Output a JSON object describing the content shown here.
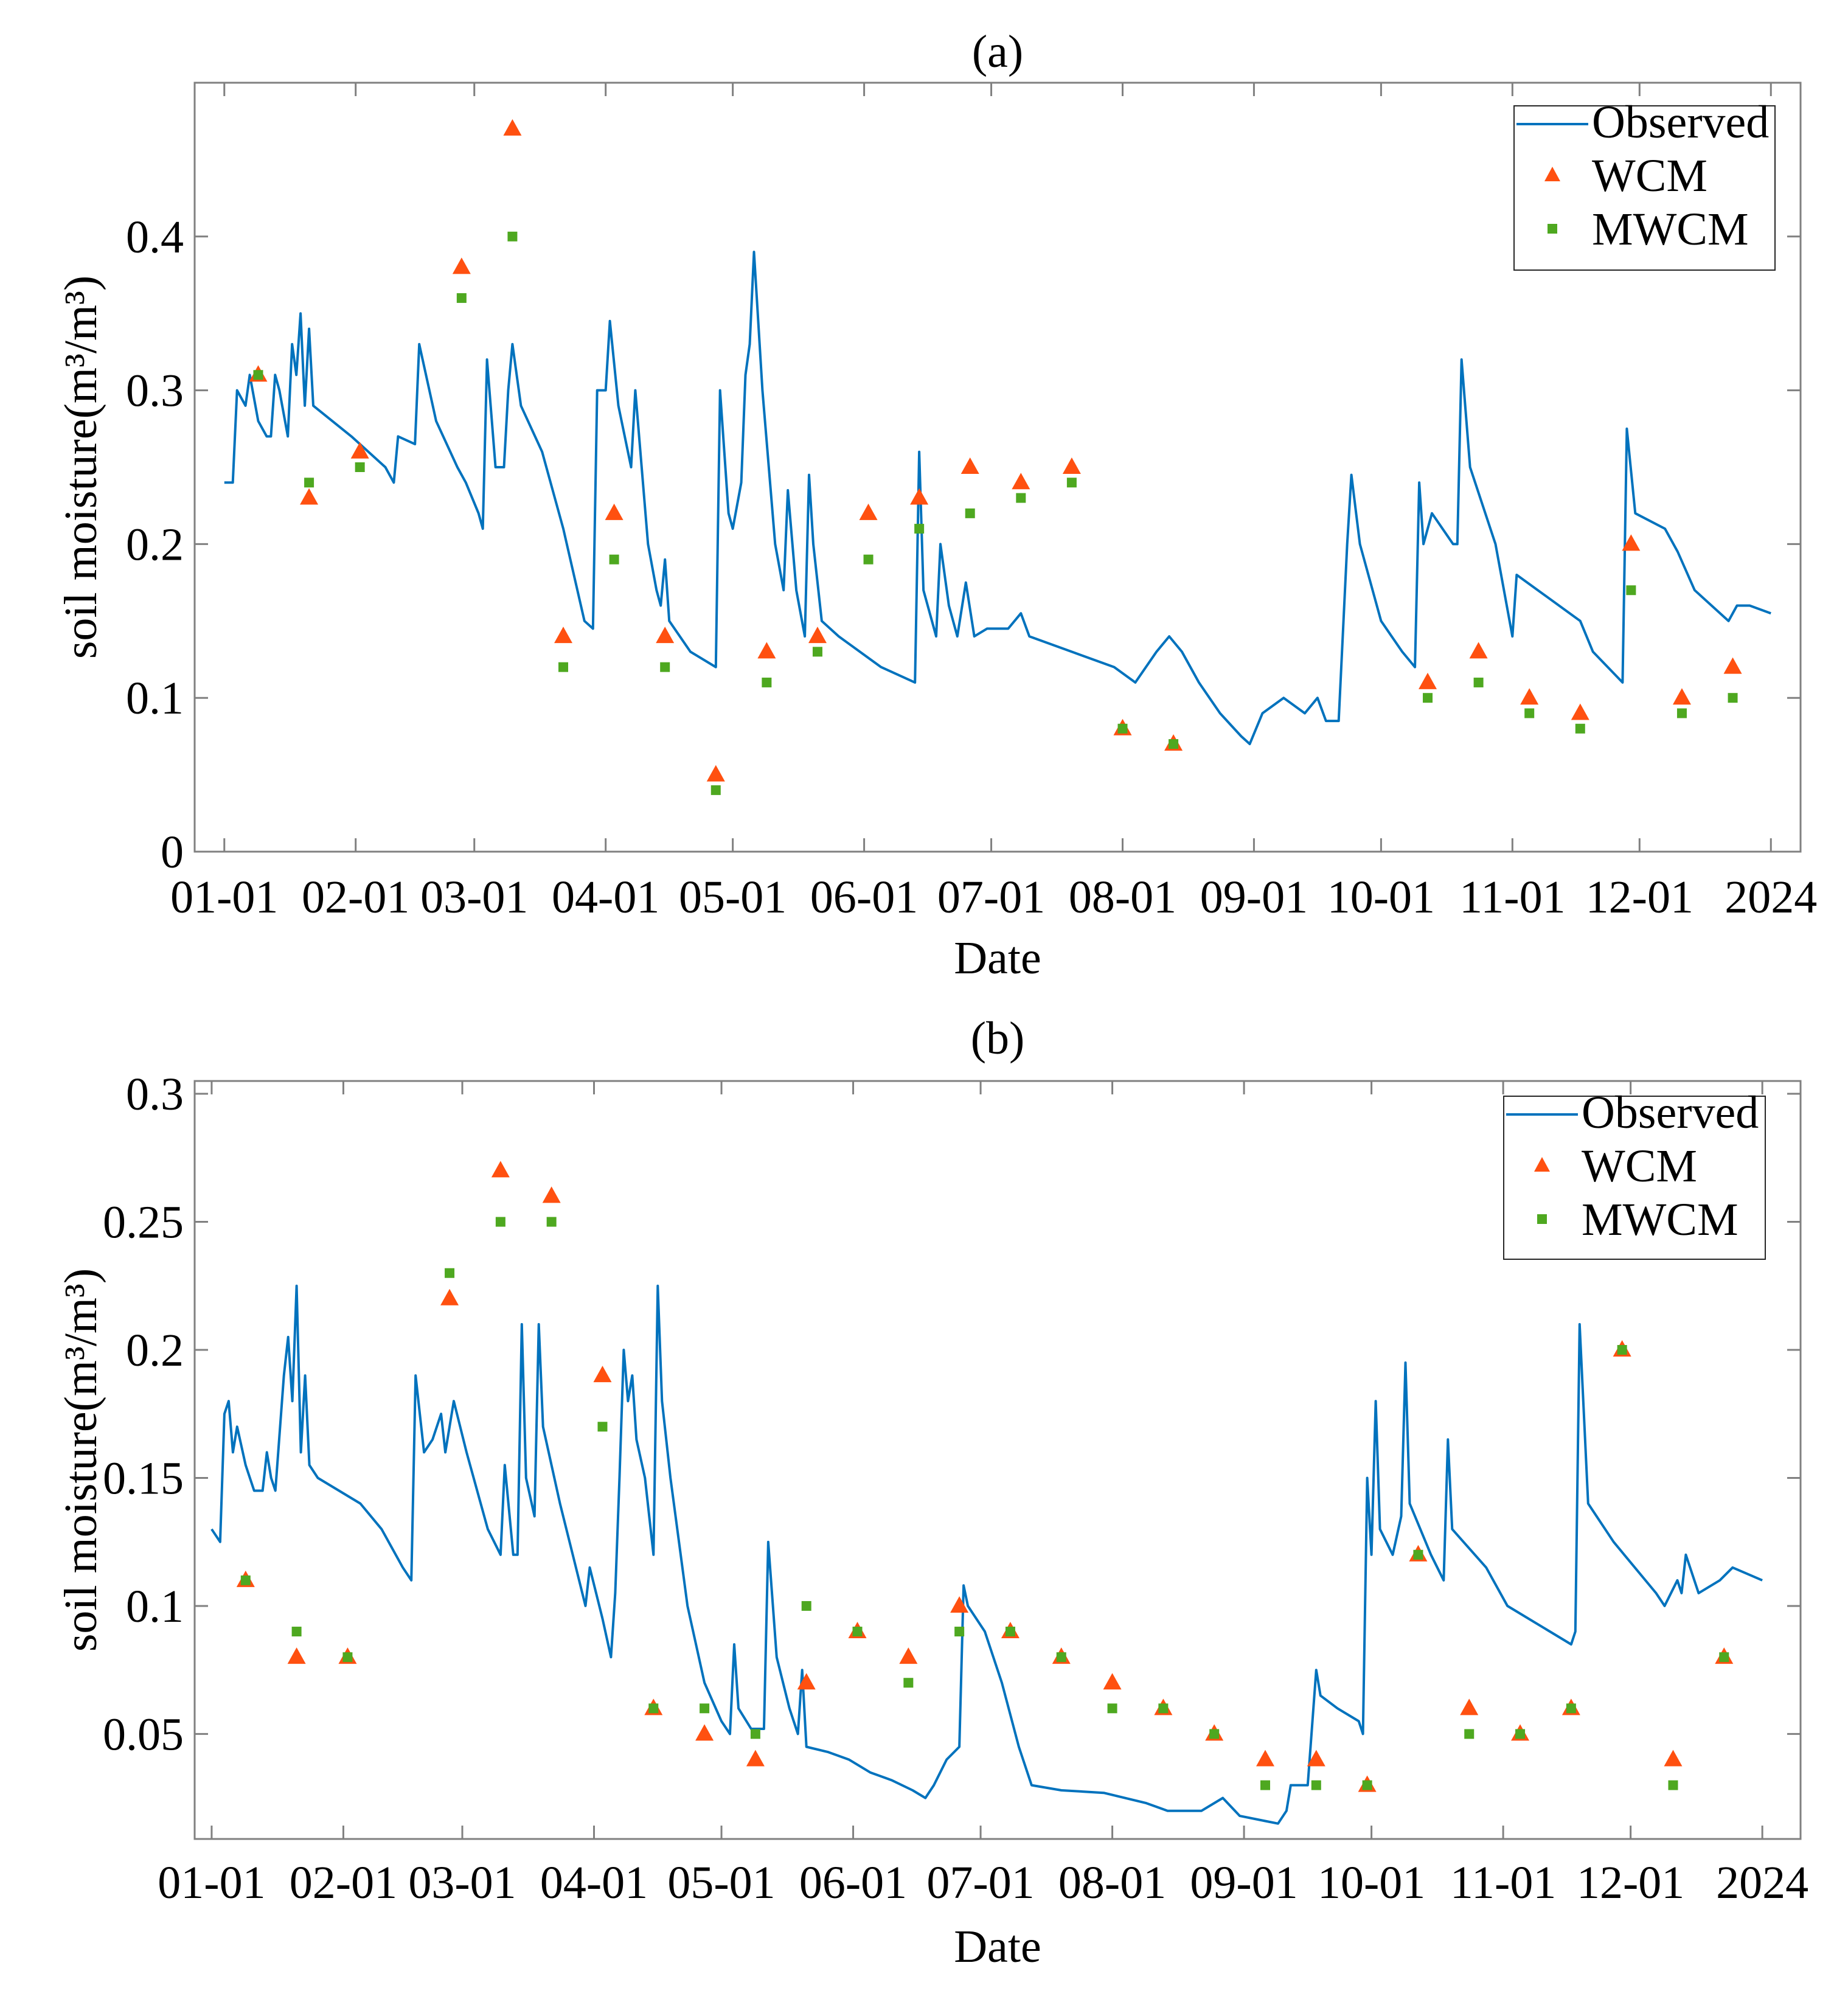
{
  "colors": {
    "observed": "#0072BD",
    "wcm": "#FF5010",
    "mwcm": "#4EA820",
    "axis": "#808080"
  },
  "chart_data": [
    {
      "type": "line",
      "title": "(a)",
      "xlabel": "Date",
      "ylabel": "soil moisture(m³/m³)",
      "x_unit": "day of year",
      "xlim": [
        -7,
        372
      ],
      "ylim": [
        0,
        0.5
      ],
      "xticks": [
        0,
        31,
        59,
        90,
        120,
        151,
        181,
        212,
        243,
        273,
        304,
        334,
        365
      ],
      "xtick_labels": [
        "01-01",
        "02-01",
        "03-01",
        "04-01",
        "05-01",
        "06-01",
        "07-01",
        "08-01",
        "09-01",
        "10-01",
        "11-01",
        "12-01",
        "2024"
      ],
      "yticks": [
        0,
        0.1,
        0.2,
        0.3,
        0.4
      ],
      "ytick_labels": [
        "0",
        "0.1",
        "0.2",
        "0.3",
        "0.4"
      ],
      "legend": {
        "position": "top-right",
        "entries": [
          "Observed",
          "WCM",
          "MWCM"
        ]
      },
      "series": [
        {
          "name": "Observed",
          "kind": "line",
          "x": [
            0,
            2,
            3,
            5,
            6,
            8,
            10,
            11,
            12,
            13,
            15,
            16,
            17,
            18,
            19,
            20,
            21,
            30,
            38,
            40,
            41,
            45,
            46,
            50,
            55,
            57,
            60,
            61,
            62,
            64,
            66,
            67,
            68,
            70,
            75,
            80,
            85,
            87,
            88,
            90,
            91,
            93,
            96,
            97,
            100,
            102,
            103,
            104,
            105,
            110,
            116,
            117,
            119,
            120,
            122,
            123,
            124,
            125,
            127,
            130,
            132,
            133,
            135,
            137,
            138,
            139,
            141,
            145,
            150,
            155,
            163,
            164,
            165,
            168,
            169,
            171,
            173,
            175,
            177,
            180,
            185,
            188,
            190,
            200,
            210,
            215,
            220,
            223,
            226,
            230,
            235,
            240,
            242,
            245,
            250,
            255,
            258,
            260,
            263,
            265,
            266,
            268,
            273,
            278,
            281,
            282,
            283,
            285,
            290,
            291,
            292,
            294,
            300,
            304,
            305,
            310,
            320,
            323,
            330,
            331,
            333,
            340,
            343,
            347,
            355,
            357,
            360,
            365
          ],
          "y": [
            0.24,
            0.24,
            0.3,
            0.29,
            0.31,
            0.28,
            0.27,
            0.27,
            0.31,
            0.3,
            0.27,
            0.33,
            0.31,
            0.35,
            0.29,
            0.34,
            0.29,
            0.27,
            0.25,
            0.24,
            0.27,
            0.265,
            0.33,
            0.28,
            0.25,
            0.24,
            0.22,
            0.21,
            0.32,
            0.25,
            0.25,
            0.3,
            0.33,
            0.29,
            0.26,
            0.21,
            0.15,
            0.145,
            0.3,
            0.3,
            0.345,
            0.29,
            0.25,
            0.3,
            0.2,
            0.17,
            0.16,
            0.19,
            0.15,
            0.13,
            0.12,
            0.3,
            0.22,
            0.21,
            0.24,
            0.31,
            0.33,
            0.39,
            0.3,
            0.2,
            0.17,
            0.235,
            0.17,
            0.14,
            0.245,
            0.2,
            0.15,
            0.14,
            0.13,
            0.12,
            0.11,
            0.26,
            0.17,
            0.14,
            0.2,
            0.16,
            0.14,
            0.175,
            0.14,
            0.145,
            0.145,
            0.155,
            0.14,
            0.13,
            0.12,
            0.11,
            0.13,
            0.14,
            0.13,
            0.11,
            0.09,
            0.075,
            0.07,
            0.09,
            0.1,
            0.09,
            0.1,
            0.085,
            0.085,
            0.2,
            0.245,
            0.2,
            0.15,
            0.13,
            0.12,
            0.24,
            0.2,
            0.22,
            0.2,
            0.2,
            0.32,
            0.25,
            0.2,
            0.14,
            0.18,
            0.17,
            0.15,
            0.13,
            0.11,
            0.275,
            0.22,
            0.21,
            0.195,
            0.17,
            0.15,
            0.16,
            0.16,
            0.155
          ]
        },
        {
          "name": "WCM",
          "kind": "triangle",
          "x": [
            8,
            20,
            32,
            56,
            68,
            80,
            92,
            104,
            116,
            128,
            140,
            152,
            164,
            176,
            188,
            200,
            212,
            224,
            284,
            296,
            308,
            320,
            332,
            344,
            356
          ],
          "y": [
            0.31,
            0.23,
            0.26,
            0.38,
            0.47,
            0.14,
            0.22,
            0.14,
            0.05,
            0.13,
            0.14,
            0.22,
            0.23,
            0.25,
            0.24,
            0.25,
            0.08,
            0.07,
            0.11,
            0.13,
            0.1,
            0.09,
            0.2,
            0.1,
            0.12
          ]
        },
        {
          "name": "MWCM",
          "kind": "square",
          "x": [
            8,
            20,
            32,
            56,
            68,
            80,
            92,
            104,
            116,
            128,
            140,
            152,
            164,
            176,
            188,
            200,
            212,
            224,
            284,
            296,
            308,
            320,
            332,
            344,
            356
          ],
          "y": [
            0.31,
            0.24,
            0.25,
            0.36,
            0.4,
            0.12,
            0.19,
            0.12,
            0.04,
            0.11,
            0.13,
            0.19,
            0.21,
            0.22,
            0.23,
            0.24,
            0.08,
            0.07,
            0.1,
            0.11,
            0.09,
            0.08,
            0.17,
            0.09,
            0.1
          ]
        }
      ]
    },
    {
      "type": "line",
      "title": "(b)",
      "xlabel": "Date",
      "ylabel": "soil moisture(m³/m³)",
      "x_unit": "day of year",
      "xlim": [
        -4,
        374
      ],
      "ylim": [
        0.009,
        0.305
      ],
      "xticks": [
        0,
        31,
        59,
        90,
        120,
        151,
        181,
        212,
        243,
        273,
        304,
        334,
        365
      ],
      "xtick_labels": [
        "01-01",
        "02-01",
        "03-01",
        "04-01",
        "05-01",
        "06-01",
        "07-01",
        "08-01",
        "09-01",
        "10-01",
        "11-01",
        "12-01",
        "2024"
      ],
      "yticks": [
        0.05,
        0.1,
        0.15,
        0.2,
        0.25,
        0.3
      ],
      "ytick_labels": [
        "0.05",
        "0.1",
        "0.15",
        "0.2",
        "0.25",
        "0.3"
      ],
      "legend": {
        "position": "top-right",
        "entries": [
          "Observed",
          "WCM",
          "MWCM"
        ]
      },
      "series": [
        {
          "name": "Observed",
          "kind": "line",
          "x": [
            0,
            2,
            3,
            4,
            5,
            6,
            8,
            10,
            12,
            13,
            14,
            15,
            17,
            18,
            19,
            20,
            21,
            22,
            23,
            25,
            35,
            40,
            45,
            47,
            48,
            50,
            52,
            54,
            55,
            57,
            60,
            65,
            68,
            69,
            71,
            72,
            73,
            74,
            76,
            77,
            78,
            82,
            85,
            88,
            89,
            92,
            94,
            95,
            96,
            97,
            98,
            99,
            100,
            102,
            104,
            105,
            106,
            108,
            112,
            116,
            120,
            122,
            123,
            124,
            127,
            130,
            131,
            133,
            136,
            138,
            139,
            140,
            145,
            150,
            155,
            160,
            165,
            168,
            170,
            173,
            176,
            177,
            178,
            182,
            186,
            190,
            193,
            200,
            210,
            220,
            225,
            233,
            238,
            242,
            248,
            251,
            253,
            254,
            258,
            260,
            261,
            265,
            270,
            271,
            272,
            273,
            274,
            275,
            278,
            280,
            281,
            282,
            287,
            290,
            291,
            292,
            300,
            305,
            315,
            320,
            321,
            322,
            324,
            330,
            340,
            342,
            345,
            346,
            347,
            350,
            355,
            358,
            365
          ],
          "y": [
            0.13,
            0.125,
            0.175,
            0.18,
            0.16,
            0.17,
            0.155,
            0.145,
            0.145,
            0.16,
            0.15,
            0.145,
            0.19,
            0.205,
            0.18,
            0.225,
            0.16,
            0.19,
            0.155,
            0.15,
            0.14,
            0.13,
            0.115,
            0.11,
            0.19,
            0.16,
            0.165,
            0.175,
            0.16,
            0.18,
            0.16,
            0.13,
            0.12,
            0.155,
            0.12,
            0.12,
            0.21,
            0.15,
            0.135,
            0.21,
            0.17,
            0.14,
            0.12,
            0.1,
            0.115,
            0.095,
            0.08,
            0.105,
            0.15,
            0.2,
            0.18,
            0.19,
            0.165,
            0.15,
            0.12,
            0.225,
            0.18,
            0.15,
            0.1,
            0.07,
            0.055,
            0.05,
            0.085,
            0.06,
            0.052,
            0.052,
            0.125,
            0.08,
            0.06,
            0.05,
            0.075,
            0.045,
            0.043,
            0.04,
            0.035,
            0.032,
            0.028,
            0.025,
            0.03,
            0.04,
            0.045,
            0.108,
            0.1,
            0.09,
            0.07,
            0.045,
            0.03,
            0.028,
            0.027,
            0.023,
            0.02,
            0.02,
            0.025,
            0.018,
            0.016,
            0.015,
            0.02,
            0.03,
            0.03,
            0.075,
            0.065,
            0.06,
            0.055,
            0.05,
            0.15,
            0.12,
            0.18,
            0.13,
            0.12,
            0.135,
            0.195,
            0.14,
            0.12,
            0.11,
            0.165,
            0.13,
            0.115,
            0.1,
            0.09,
            0.085,
            0.09,
            0.21,
            0.14,
            0.125,
            0.105,
            0.1,
            0.11,
            0.105,
            0.12,
            0.105,
            0.11,
            0.115,
            0.11
          ]
        },
        {
          "name": "WCM",
          "kind": "triangle",
          "x": [
            8,
            20,
            32,
            56,
            68,
            80,
            92,
            104,
            116,
            128,
            140,
            152,
            164,
            176,
            188,
            200,
            212,
            224,
            236,
            248,
            260,
            272,
            284,
            296,
            308,
            320,
            332,
            344,
            356
          ],
          "y": [
            0.11,
            0.08,
            0.08,
            0.22,
            0.27,
            0.26,
            0.19,
            0.06,
            0.05,
            0.04,
            0.07,
            0.09,
            0.08,
            0.1,
            0.09,
            0.08,
            0.07,
            0.06,
            0.05,
            0.04,
            0.04,
            0.03,
            0.12,
            0.06,
            0.05,
            0.06,
            0.2,
            0.04,
            0.08
          ]
        },
        {
          "name": "MWCM",
          "kind": "square",
          "x": [
            8,
            20,
            32,
            56,
            68,
            80,
            92,
            104,
            116,
            128,
            140,
            152,
            164,
            176,
            188,
            200,
            212,
            224,
            236,
            248,
            260,
            272,
            284,
            296,
            308,
            320,
            332,
            344,
            356
          ],
          "y": [
            0.11,
            0.09,
            0.08,
            0.23,
            0.25,
            0.25,
            0.17,
            0.06,
            0.06,
            0.05,
            0.1,
            0.09,
            0.07,
            0.09,
            0.09,
            0.08,
            0.06,
            0.06,
            0.05,
            0.03,
            0.03,
            0.03,
            0.12,
            0.05,
            0.05,
            0.06,
            0.2,
            0.03,
            0.08
          ]
        }
      ]
    }
  ]
}
